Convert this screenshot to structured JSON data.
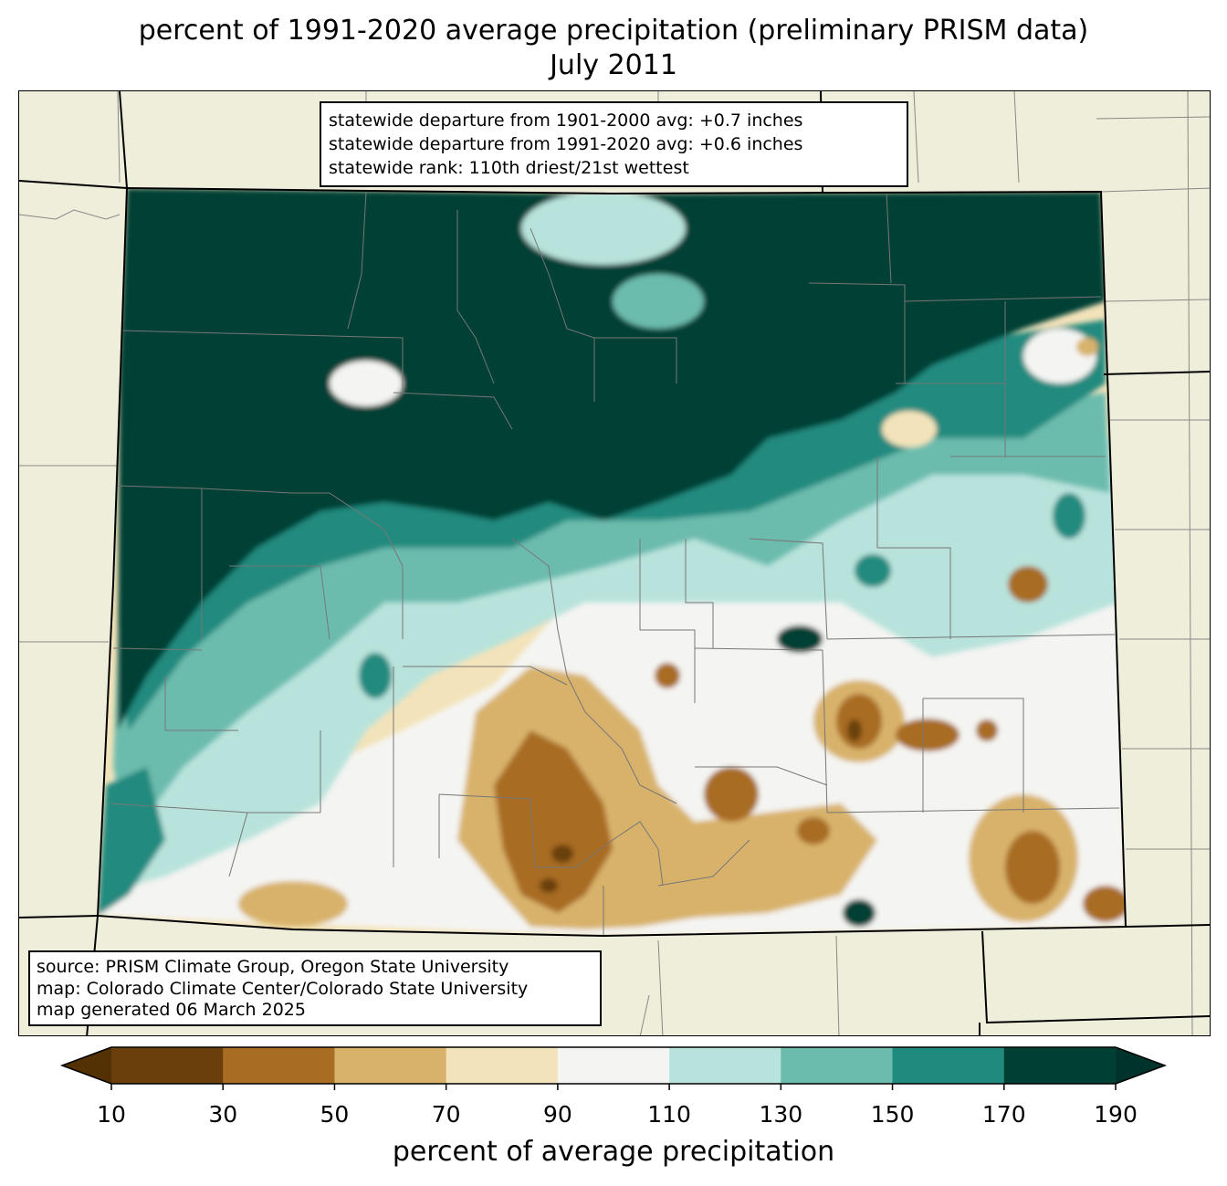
{
  "title": {
    "line1": "percent of 1991-2020 average precipitation (preliminary PRISM data)",
    "line2": "July 2011"
  },
  "stats": {
    "line1": "statewide departure from 1901-2000 avg: +0.7 inches",
    "line2": "statewide departure from 1991-2020 avg: +0.6 inches",
    "line3": "statewide rank: 110th driest/21st wettest"
  },
  "source": {
    "line1": "source: PRISM Climate Group, Oregon State University",
    "line2": "map: Colorado Climate Center/Colorado State University",
    "line3": "map generated 06 March 2025"
  },
  "colorbar": {
    "label": "percent of average precipitation",
    "ticks": [
      "10",
      "30",
      "50",
      "70",
      "90",
      "110",
      "130",
      "150",
      "170",
      "190"
    ],
    "colors": [
      "#6b3f0c",
      "#a86c22",
      "#d8b26a",
      "#f3e3ba",
      "#f4f4f2",
      "#b8e3dc",
      "#6cbcad",
      "#218a7f",
      "#003f34"
    ],
    "under_color": "#543005",
    "over_color": "#00332b"
  },
  "map_colors": {
    "background": "#efeedb",
    "state_border": "#000000",
    "county_lines": "#777777"
  }
}
